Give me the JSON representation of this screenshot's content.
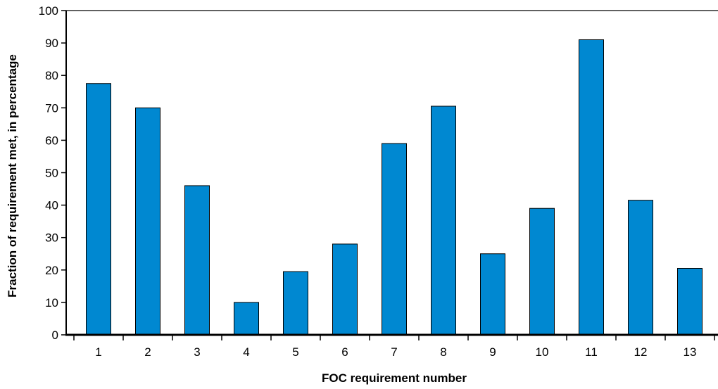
{
  "chart_data": {
    "type": "bar",
    "title": "",
    "xlabel": "FOC requirement number",
    "ylabel": "Fraction of requirement met, in percentage",
    "categories": [
      "1",
      "2",
      "3",
      "4",
      "5",
      "6",
      "7",
      "8",
      "9",
      "10",
      "11",
      "12",
      "13"
    ],
    "values": [
      77.5,
      70,
      46,
      10,
      19.5,
      28,
      59,
      70.5,
      25,
      39,
      91,
      41.5,
      20.5
    ],
    "ylim": [
      0,
      100
    ],
    "yticks": [
      0,
      10,
      20,
      30,
      40,
      50,
      60,
      70,
      80,
      90,
      100
    ],
    "grid": false,
    "legend": "none",
    "bar_color": "#0088D1",
    "bar_edge_color": "#000000"
  }
}
